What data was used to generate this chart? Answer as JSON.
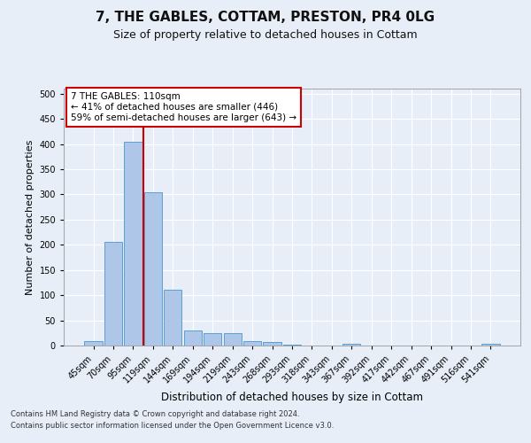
{
  "title1": "7, THE GABLES, COTTAM, PRESTON, PR4 0LG",
  "title2": "Size of property relative to detached houses in Cottam",
  "xlabel": "Distribution of detached houses by size in Cottam",
  "ylabel": "Number of detached properties",
  "categories": [
    "45sqm",
    "70sqm",
    "95sqm",
    "119sqm",
    "144sqm",
    "169sqm",
    "194sqm",
    "219sqm",
    "243sqm",
    "268sqm",
    "293sqm",
    "318sqm",
    "343sqm",
    "367sqm",
    "392sqm",
    "417sqm",
    "442sqm",
    "467sqm",
    "491sqm",
    "516sqm",
    "541sqm"
  ],
  "values": [
    8,
    205,
    405,
    305,
    110,
    30,
    25,
    25,
    8,
    7,
    2,
    0,
    0,
    4,
    0,
    0,
    0,
    0,
    0,
    0,
    4
  ],
  "bar_color": "#aec6e8",
  "bar_edge_color": "#5a9fd4",
  "vline_color": "#cc0000",
  "annotation_text": "7 THE GABLES: 110sqm\n← 41% of detached houses are smaller (446)\n59% of semi-detached houses are larger (643) →",
  "annotation_box_color": "#ffffff",
  "annotation_box_edge": "#cc0000",
  "ylim": [
    0,
    510
  ],
  "yticks": [
    0,
    50,
    100,
    150,
    200,
    250,
    300,
    350,
    400,
    450,
    500
  ],
  "footer1": "Contains HM Land Registry data © Crown copyright and database right 2024.",
  "footer2": "Contains public sector information licensed under the Open Government Licence v3.0.",
  "bg_color": "#e8eef8",
  "grid_color": "#ffffff",
  "title1_fontsize": 11,
  "title2_fontsize": 9,
  "annotation_fontsize": 7.5,
  "ylabel_fontsize": 8,
  "xlabel_fontsize": 8.5,
  "tick_fontsize": 7,
  "footer_fontsize": 6
}
